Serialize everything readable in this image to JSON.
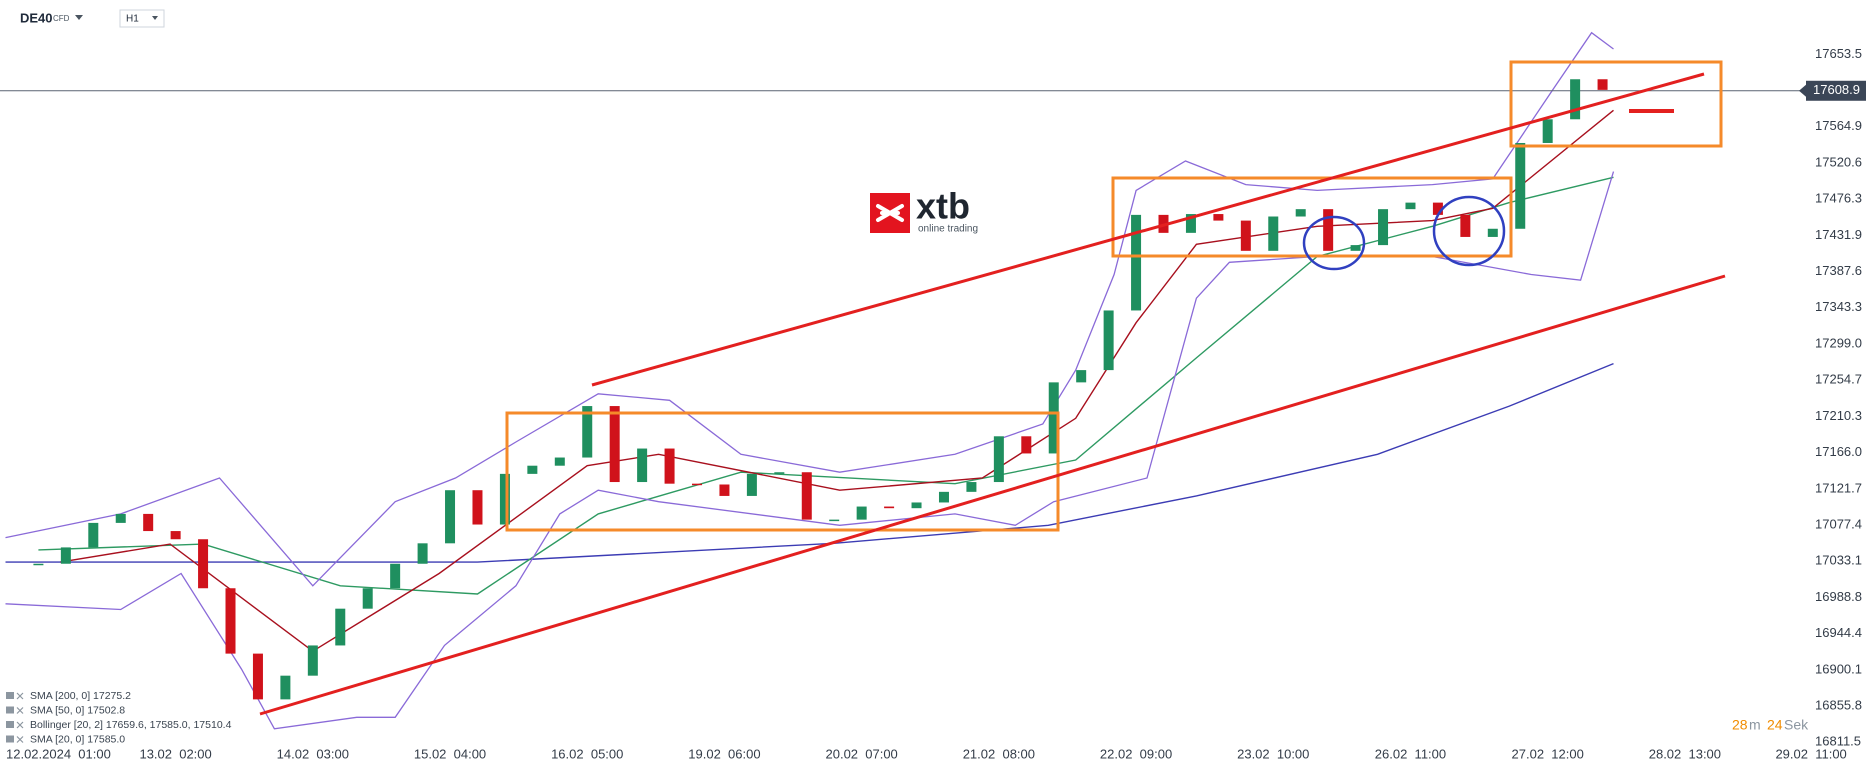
{
  "header": {
    "symbol": "DE40",
    "instrument_type": "CFD",
    "interval": "H1"
  },
  "logo": {
    "name": "xtb",
    "tagline": "online trading"
  },
  "countdown": {
    "minutes": 28,
    "minutes_unit": "m",
    "seconds": 24,
    "seconds_unit": "Sek"
  },
  "chart_data": {
    "type": "candlestick",
    "x": [
      0,
      5,
      10,
      15,
      20,
      25,
      30,
      35,
      40,
      45,
      50,
      55,
      60,
      65,
      70,
      75,
      80,
      85,
      90,
      95,
      100,
      105,
      110,
      115,
      120,
      125,
      130,
      135,
      140,
      145,
      150,
      155,
      160,
      165,
      170,
      175,
      180,
      185,
      190,
      195,
      200,
      205,
      210,
      215,
      220,
      225,
      230,
      235,
      240,
      245,
      250,
      255,
      260,
      265,
      270,
      275,
      280,
      285
    ],
    "values": [
      17030,
      17050,
      17080,
      17091,
      17070,
      17060,
      17000,
      16920,
      16864,
      16893,
      16930,
      16975,
      17000,
      17030,
      17055,
      17120,
      17078,
      17140,
      17150,
      17160,
      17223,
      17130,
      17171,
      17128,
      17127,
      17113,
      17140,
      17142,
      17084,
      17084,
      17100,
      17098,
      17105,
      17118,
      17130,
      17186,
      17165,
      17252,
      17267,
      17340,
      17457,
      17435,
      17458,
      17450,
      17413,
      17455,
      17464,
      17413,
      17420,
      17464,
      17472,
      17457,
      17430,
      17440,
      17545,
      17574,
      17623,
      17610
    ],
    "up_color": "#1f8f5f",
    "down_color": "#d0121b",
    "xlim": [
      -7,
      333
    ],
    "ylim": [
      16780,
      17720
    ],
    "xticks": [
      {
        "value": 0,
        "label": "12.02.2024  01:00"
      },
      {
        "value": 25,
        "label": "13.02  02:00"
      },
      {
        "value": 50,
        "label": "14.02  03:00"
      },
      {
        "value": 75,
        "label": "15.02  04:00"
      },
      {
        "value": 100,
        "label": "16.02  05:00"
      },
      {
        "value": 125,
        "label": "19.02  06:00"
      },
      {
        "value": 150,
        "label": "20.02  07:00"
      },
      {
        "value": 175,
        "label": "21.02  08:00"
      },
      {
        "value": 200,
        "label": "22.02  09:00"
      },
      {
        "value": 225,
        "label": "23.02  10:00"
      },
      {
        "value": 250,
        "label": "26.02  11:00"
      },
      {
        "value": 275,
        "label": "27.02  12:00"
      },
      {
        "value": 300,
        "label": "28.02  13:00"
      },
      {
        "value": 323,
        "label": "29.02  11:00"
      }
    ],
    "yticks": [
      17653.5,
      17564.9,
      17520.6,
      17476.3,
      17431.9,
      17387.6,
      17343.3,
      {
        "value": 17299,
        "label": "17299.0"
      },
      17254.7,
      17210.3,
      {
        "value": 17166,
        "label": "17166.0"
      },
      17121.7,
      17077.4,
      17033.1,
      16988.8,
      16944.4,
      16900.1,
      16855.8,
      16811.5
    ],
    "grid": false,
    "last_price": 17608.9,
    "indicators": [
      {
        "name": "SMA [200,  0]  17275.2",
        "color": "#3c3cb4",
        "x": [
          -6,
          80,
          145,
          184,
          211,
          244,
          268,
          287
        ],
        "values": [
          17032,
          17032,
          17055,
          17077,
          17113,
          17164,
          17223,
          17275
        ]
      },
      {
        "name": "SMA [50,  0]  17502.8",
        "color": "#2e9a62",
        "x": [
          0,
          30,
          55,
          80,
          102,
          128,
          167,
          189,
          211,
          233,
          254,
          268,
          287
        ],
        "values": [
          17047,
          17054,
          17003,
          16993,
          17091,
          17142,
          17128,
          17157,
          17282,
          17406,
          17443,
          17472,
          17503
        ]
      },
      {
        "name": "Bollinger [20,  2]  17659.6,  17585.0,  17510.4",
        "color": "#8a6ad8",
        "x": [
          -6,
          15,
          33,
          50,
          65,
          76,
          87,
          102,
          115,
          128,
          146,
          167,
          183,
          189,
          196,
          200,
          209,
          220,
          233,
          254,
          265,
          276,
          283,
          287
        ],
        "upper": [
          17062,
          17091,
          17135,
          17003,
          17106,
          17135,
          17179,
          17238,
          17230,
          17164,
          17142,
          17164,
          17201,
          17267,
          17384,
          17487,
          17523,
          17494,
          17487,
          17494,
          17501,
          17611,
          17680,
          17660
        ],
        "lower_x": [
          -6,
          15,
          26,
          37,
          43,
          58,
          65,
          74,
          87,
          95,
          102,
          113,
          146,
          167,
          178,
          185,
          202,
          211,
          217,
          233,
          254,
          272,
          281,
          287
        ],
        "lower": [
          16981,
          16974,
          17018,
          16901,
          16828,
          16842,
          16842,
          16930,
          17003,
          17091,
          17120,
          17106,
          17077,
          17091,
          17077,
          17106,
          17135,
          17355,
          17399,
          17406,
          17406,
          17384,
          17377,
          17510
        ]
      },
      {
        "name": "SMA [20,  0]  17585.0",
        "color": "#a8101e",
        "x": [
          4,
          24,
          50,
          73,
          100,
          113,
          146,
          172,
          189,
          200,
          211,
          233,
          254,
          265,
          287
        ],
        "values": [
          17032,
          17054,
          16923,
          17018,
          17150,
          17164,
          17120,
          17135,
          17208,
          17325,
          17421,
          17443,
          17450,
          17465,
          17585
        ]
      }
    ]
  }
}
